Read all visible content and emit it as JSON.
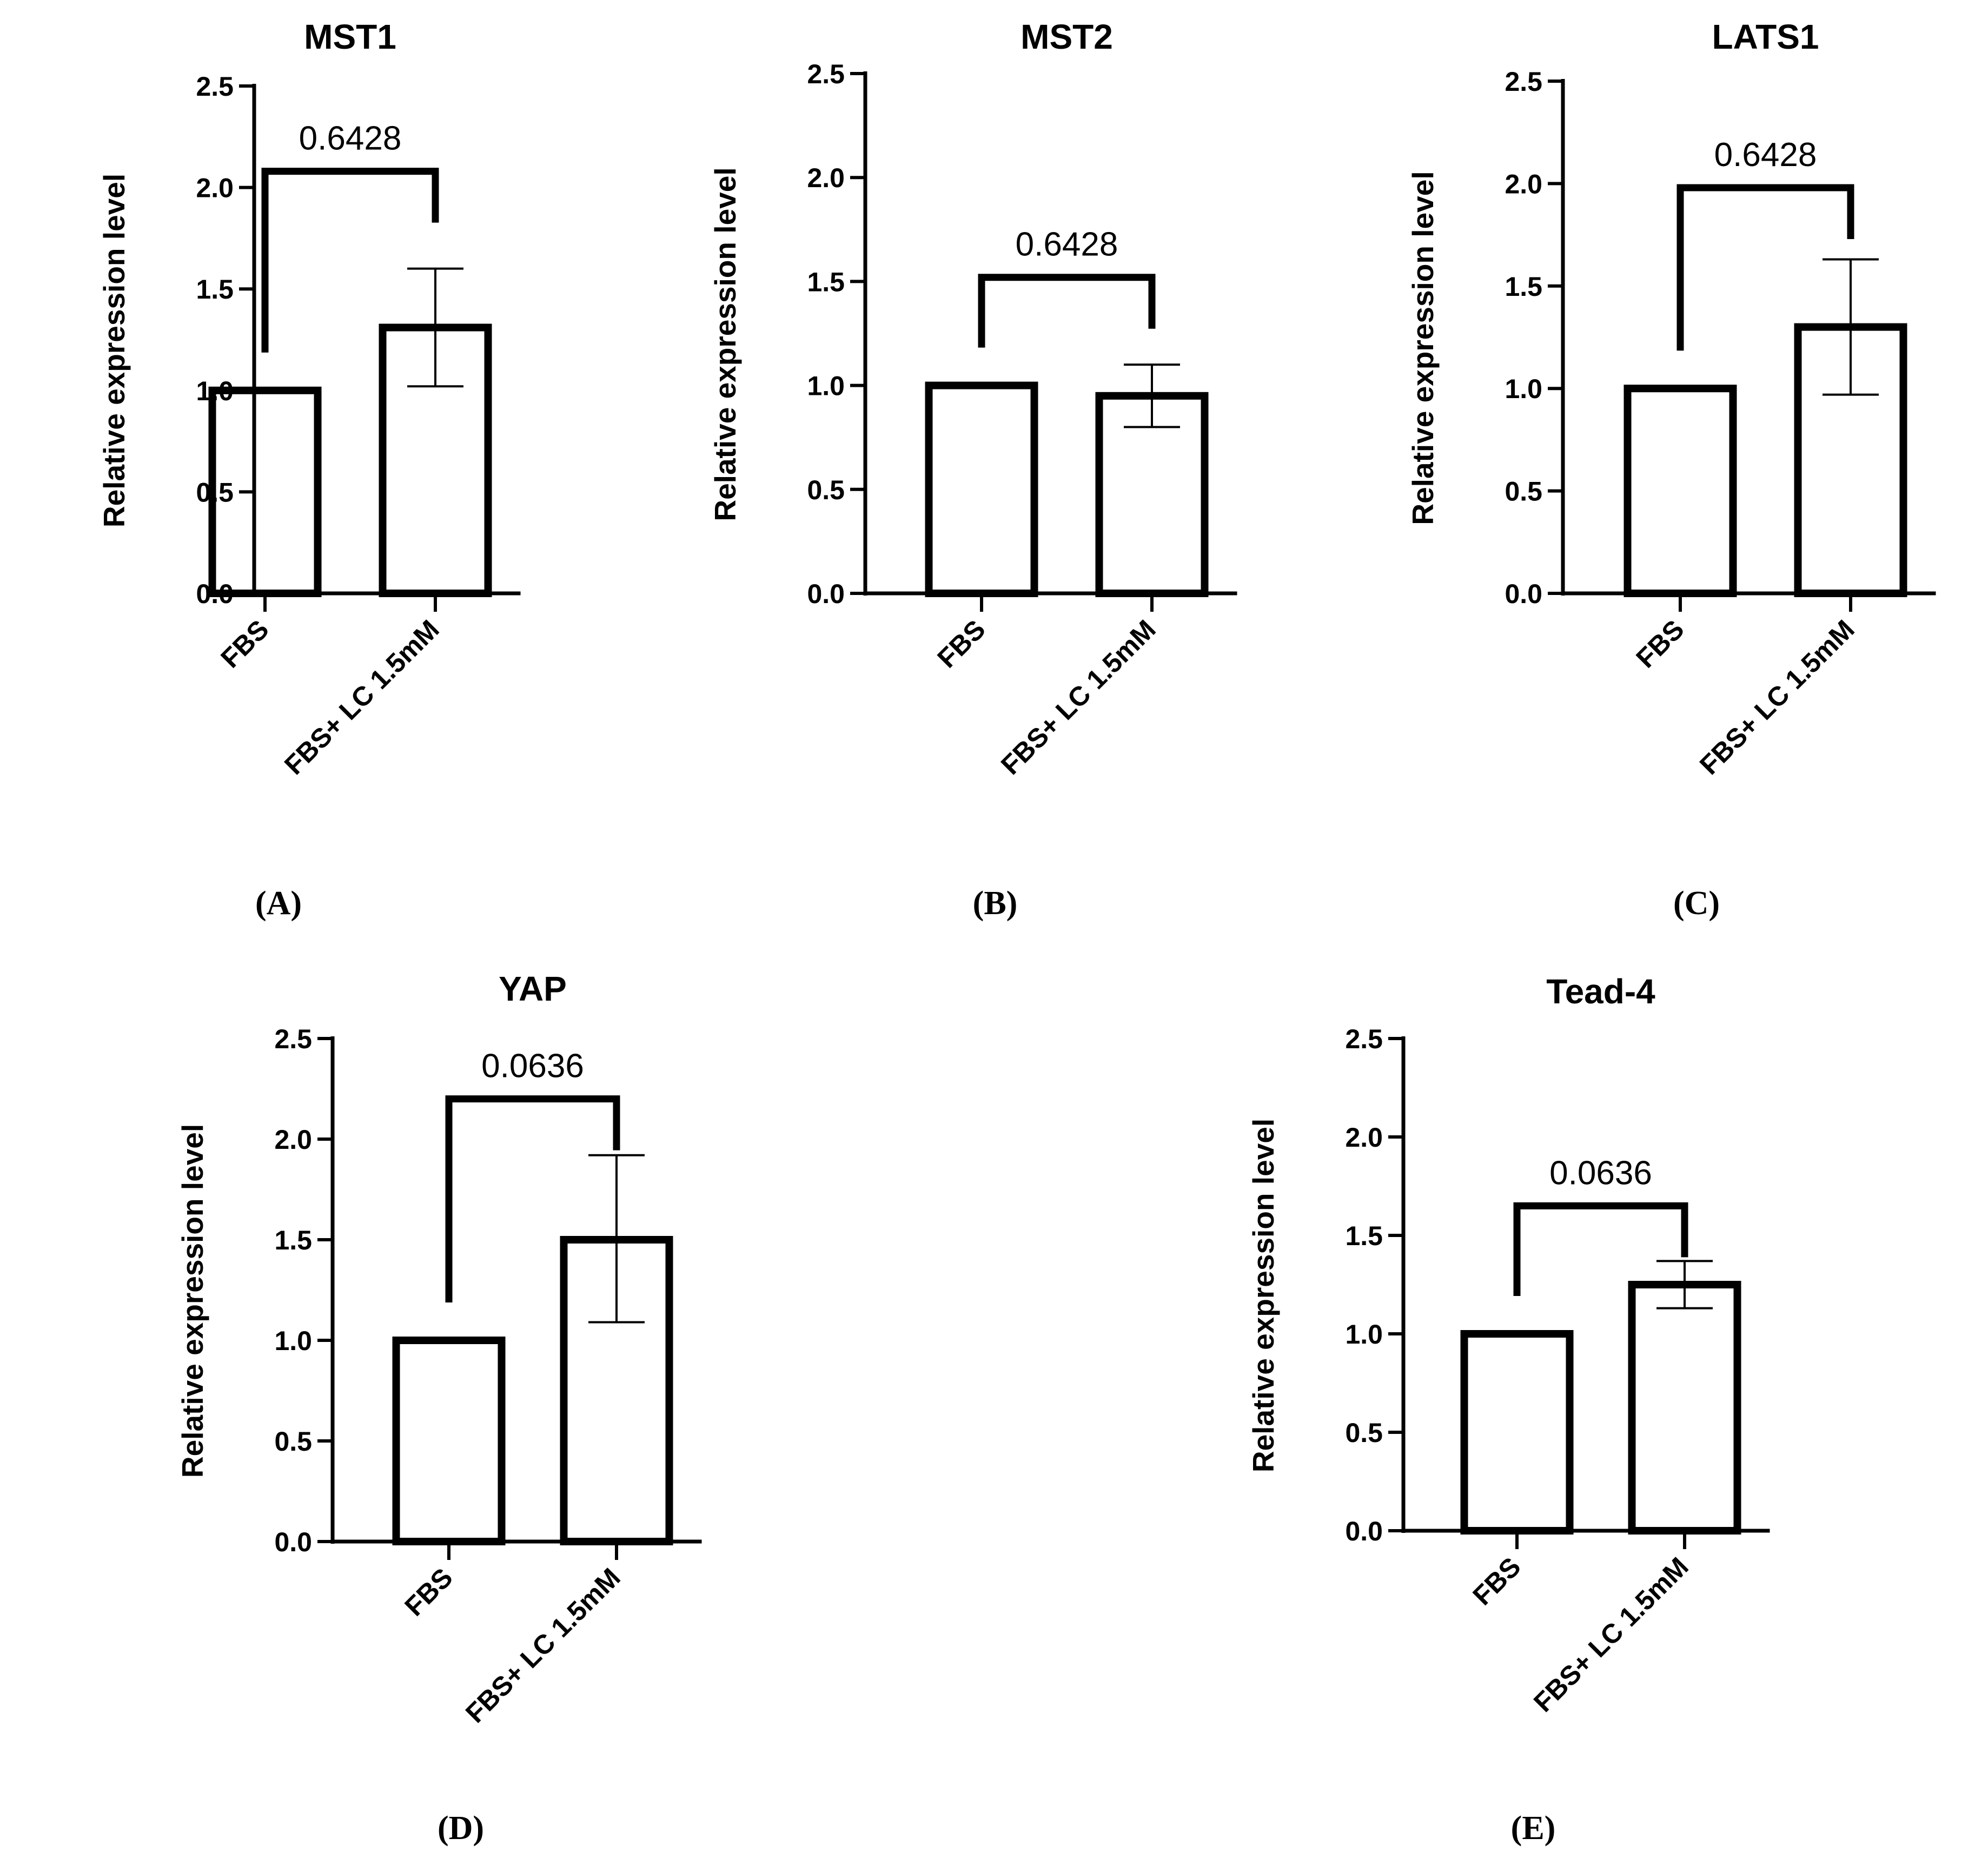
{
  "chart_data": [
    {
      "panel_label": "(A)",
      "type": "bar",
      "title": "MST1",
      "ylabel": "Relative expression level",
      "categories": [
        "FBS",
        "FBS+ LC 1.5mM"
      ],
      "values": [
        1.0,
        1.31
      ],
      "error_upper": [
        null,
        1.6
      ],
      "error_lower": [
        null,
        1.02
      ],
      "ylim": [
        0,
        2.5
      ],
      "yticks": [
        "0.0",
        "0.5",
        "1.0",
        "1.5",
        "2.0",
        "2.5"
      ],
      "annotation": {
        "text": "0.6428",
        "bracket_level": 2.08
      }
    },
    {
      "panel_label": "(B)",
      "type": "bar",
      "title": "MST2",
      "ylabel": "Relative expression level",
      "categories": [
        "FBS",
        "FBS+ LC 1.5mM"
      ],
      "values": [
        1.0,
        0.95
      ],
      "error_upper": [
        null,
        1.1
      ],
      "error_lower": [
        null,
        0.8
      ],
      "ylim": [
        0,
        2.5
      ],
      "yticks": [
        "0.0",
        "0.5",
        "1.0",
        "1.5",
        "2.0",
        "2.5"
      ],
      "annotation": {
        "text": "0.6428",
        "bracket_level": 1.52
      }
    },
    {
      "panel_label": "(C)",
      "type": "bar",
      "title": "LATS1",
      "ylabel": "Relative expression level",
      "categories": [
        "FBS",
        "FBS+ LC 1.5mM"
      ],
      "values": [
        1.0,
        1.3
      ],
      "error_upper": [
        null,
        1.63
      ],
      "error_lower": [
        null,
        0.97
      ],
      "ylim": [
        0,
        2.5
      ],
      "yticks": [
        "0.0",
        "0.5",
        "1.0",
        "1.5",
        "2.0",
        "2.5"
      ],
      "annotation": {
        "text": "0.6428",
        "bracket_level": 1.98
      }
    },
    {
      "panel_label": "(D)",
      "type": "bar",
      "title": "YAP",
      "ylabel": "Relative expression level",
      "categories": [
        "FBS",
        "FBS+ LC 1.5mM"
      ],
      "values": [
        1.0,
        1.5
      ],
      "error_upper": [
        null,
        1.92
      ],
      "error_lower": [
        null,
        1.09
      ],
      "ylim": [
        0,
        2.5
      ],
      "yticks": [
        "0.0",
        "0.5",
        "1.0",
        "1.5",
        "2.0",
        "2.5"
      ],
      "annotation": {
        "text": "0.0636",
        "bracket_level": 2.2
      }
    },
    {
      "panel_label": "(E)",
      "type": "bar",
      "title": "Tead-4",
      "ylabel": "Relative expression level",
      "categories": [
        "FBS",
        "FBS+ LC 1.5mM"
      ],
      "values": [
        1.0,
        1.25
      ],
      "error_upper": [
        null,
        1.37
      ],
      "error_lower": [
        null,
        1.13
      ],
      "ylim": [
        0,
        2.5
      ],
      "yticks": [
        "0.0",
        "0.5",
        "1.0",
        "1.5",
        "2.0",
        "2.5"
      ],
      "annotation": {
        "text": "0.0636",
        "bracket_level": 1.65
      }
    }
  ]
}
